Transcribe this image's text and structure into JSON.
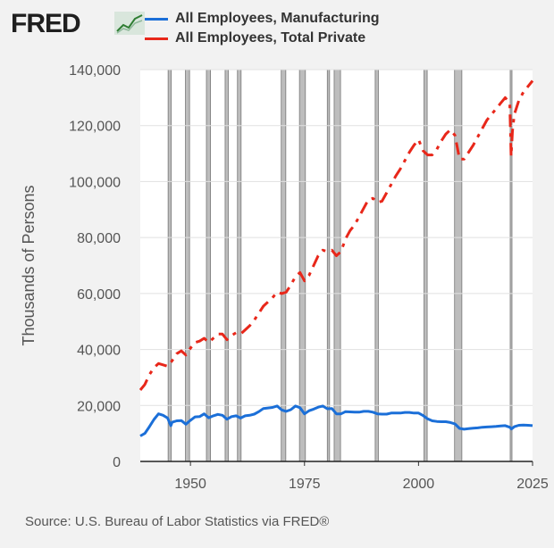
{
  "brand": {
    "logo_text": "FRED",
    "logo_icon": "trend-line-icon"
  },
  "chart_data": {
    "type": "line",
    "ylabel": "Thousands of Persons",
    "xlabel": "",
    "xlim": [
      1939,
      2025
    ],
    "ylim": [
      0,
      140000
    ],
    "x_ticks": [
      1950,
      1975,
      2000,
      2025
    ],
    "y_ticks": [
      0,
      20000,
      40000,
      60000,
      80000,
      100000,
      120000,
      140000
    ],
    "y_tick_labels": [
      "0",
      "20,000",
      "40,000",
      "60,000",
      "80,000",
      "100,000",
      "120,000",
      "140,000"
    ],
    "grid": "horizontal",
    "legend_position": "top",
    "recessions": [
      [
        1945.1,
        1945.8
      ],
      [
        1948.9,
        1949.8
      ],
      [
        1953.5,
        1954.4
      ],
      [
        1957.6,
        1958.3
      ],
      [
        1960.3,
        1961.1
      ],
      [
        1969.9,
        1970.9
      ],
      [
        1973.9,
        1975.2
      ],
      [
        1980.0,
        1980.5
      ],
      [
        1981.5,
        1982.9
      ],
      [
        1990.5,
        1991.2
      ],
      [
        2001.2,
        2001.9
      ],
      [
        2007.9,
        2009.5
      ],
      [
        2020.1,
        2020.3
      ]
    ],
    "series": [
      {
        "name": "All Employees, Manufacturing",
        "color": "#1b6fd8",
        "style": "solid",
        "x": [
          1939,
          1940,
          1941,
          1942,
          1943,
          1944,
          1945,
          1945.7,
          1946,
          1947,
          1948,
          1949,
          1950,
          1951,
          1952,
          1953,
          1954,
          1955,
          1956,
          1957,
          1958,
          1959,
          1960,
          1961,
          1962,
          1963,
          1964,
          1965,
          1966,
          1967,
          1968,
          1969,
          1970,
          1971,
          1972,
          1973,
          1974,
          1975,
          1976,
          1977,
          1978,
          1979,
          1980,
          1981,
          1982,
          1983,
          1984,
          1985,
          1986,
          1987,
          1988,
          1989,
          1990,
          1991,
          1992,
          1993,
          1994,
          1995,
          1996,
          1997,
          1998,
          1999,
          2000,
          2001,
          2002,
          2003,
          2004,
          2005,
          2006,
          2007,
          2008,
          2009,
          2010,
          2011,
          2012,
          2013,
          2014,
          2015,
          2016,
          2017,
          2018,
          2019,
          2020,
          2020.4,
          2021,
          2022,
          2023,
          2024,
          2025
        ],
        "values": [
          9100,
          10000,
          12400,
          15000,
          17000,
          16500,
          15500,
          12800,
          14000,
          14500,
          14600,
          13300,
          14700,
          15900,
          16000,
          17000,
          15600,
          16300,
          16800,
          16500,
          15100,
          16000,
          16300,
          15500,
          16300,
          16500,
          16900,
          17800,
          18900,
          19100,
          19300,
          19800,
          18400,
          17900,
          18500,
          19800,
          19200,
          17000,
          18100,
          18700,
          19400,
          19800,
          18800,
          18900,
          17000,
          17000,
          17800,
          17700,
          17600,
          17600,
          17900,
          17900,
          17600,
          17000,
          16900,
          16900,
          17300,
          17300,
          17300,
          17500,
          17500,
          17300,
          17300,
          16400,
          15200,
          14500,
          14300,
          14200,
          14200,
          13900,
          13400,
          11800,
          11500,
          11700,
          11900,
          12000,
          12200,
          12300,
          12400,
          12500,
          12700,
          12800,
          12200,
          11600,
          12400,
          12900,
          13000,
          12900,
          12800
        ]
      },
      {
        "name": "All Employees, Total Private",
        "color": "#e8271a",
        "style": "dashdot",
        "x": [
          1939,
          1940,
          1941,
          1942,
          1943,
          1944,
          1945,
          1946,
          1947,
          1948,
          1949,
          1950,
          1951,
          1952,
          1953,
          1954,
          1955,
          1956,
          1957,
          1958,
          1959,
          1960,
          1961,
          1962,
          1963,
          1964,
          1965,
          1966,
          1967,
          1968,
          1969,
          1970,
          1971,
          1972,
          1973,
          1974,
          1975,
          1976,
          1977,
          1978,
          1979,
          1980,
          1981,
          1982,
          1983,
          1984,
          1985,
          1986,
          1987,
          1988,
          1989,
          1990,
          1991,
          1992,
          1993,
          1994,
          1995,
          1996,
          1997,
          1998,
          1999,
          2000,
          2001,
          2002,
          2003,
          2004,
          2005,
          2006,
          2007,
          2008,
          2009,
          2010,
          2011,
          2012,
          2013,
          2014,
          2015,
          2016,
          2017,
          2018,
          2019,
          2020,
          2020.3,
          2020.6,
          2021,
          2022,
          2023,
          2024,
          2025
        ],
        "values": [
          25500,
          27500,
          31000,
          33500,
          35000,
          34500,
          34000,
          36000,
          38500,
          39500,
          38000,
          40500,
          42500,
          43000,
          44000,
          42500,
          44000,
          45500,
          45500,
          43500,
          45000,
          46000,
          45500,
          47000,
          48500,
          50500,
          53000,
          55500,
          57000,
          58500,
          60500,
          60000,
          60500,
          63000,
          66000,
          67500,
          64500,
          66500,
          70000,
          73500,
          75500,
          75000,
          75500,
          73500,
          75000,
          79500,
          82500,
          84500,
          87500,
          90500,
          93500,
          94000,
          92500,
          93000,
          96000,
          99000,
          102000,
          104500,
          107500,
          110500,
          113000,
          115000,
          111000,
          109500,
          109500,
          111500,
          114500,
          117000,
          118500,
          116500,
          108000,
          108000,
          110500,
          113000,
          116000,
          119000,
          122000,
          124000,
          126000,
          128000,
          130000,
          128000,
          109000,
          118000,
          124000,
          129000,
          132000,
          134000,
          136000
        ]
      }
    ]
  },
  "source": "Source: U.S. Bureau of Labor Statistics via FRED®"
}
